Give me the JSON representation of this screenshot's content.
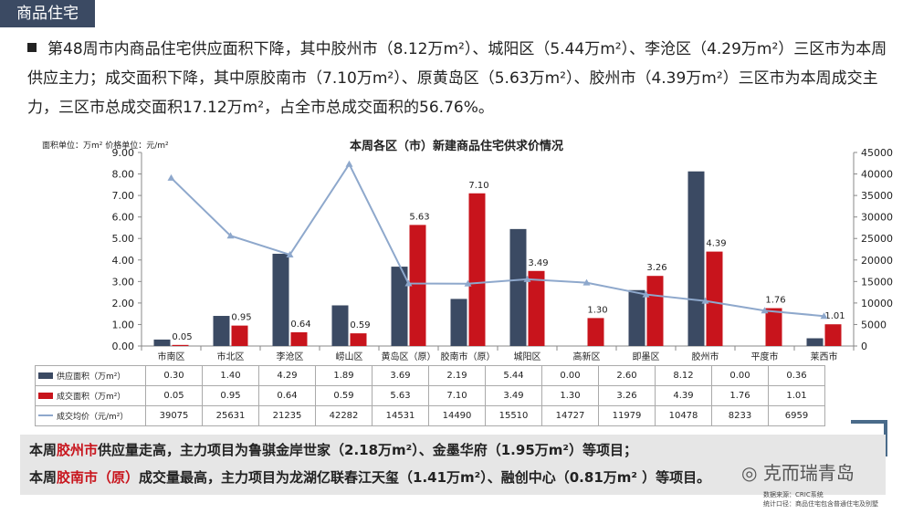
{
  "tag": "商品住宅",
  "intro": "第48周市内商品住宅供应面积下降，其中胶州市（8.12万m²）、城阳区（5.44万m²）、李沧区（4.29万m²）三区市为本周供应主力；成交面积下降，其中原胶南市（7.10万m²）、原黄岛区（5.63万m²）、胶州市（4.39万m²）三区市为本周成交主力，三区市总成交面积17.12万m²，占全市总成交面积的56.76%。",
  "unit_note": "面积单位：万m²  价格单位：元/m²",
  "chart_data": {
    "type": "bar",
    "title": "本周各区（市）新建商品住宅供求价情况",
    "categories": [
      "市南区",
      "市北区",
      "李沧区",
      "崂山区",
      "黄岛区（原）",
      "胶南市（原）",
      "城阳区",
      "高新区",
      "即墨区",
      "胶州市",
      "平度市",
      "莱西市"
    ],
    "series": [
      {
        "name": "供应面积（万m²）",
        "type": "bar",
        "axis": "left",
        "color": "#3b4a63",
        "values": [
          0.3,
          1.4,
          4.29,
          1.89,
          3.69,
          2.19,
          5.44,
          0.0,
          2.6,
          8.12,
          0.0,
          0.36
        ]
      },
      {
        "name": "成交面积（万m²）",
        "type": "bar",
        "axis": "left",
        "color": "#c8141c",
        "values": [
          0.05,
          0.95,
          0.64,
          0.59,
          5.63,
          7.1,
          3.49,
          1.3,
          3.26,
          4.39,
          1.76,
          1.01
        ]
      },
      {
        "name": "成交均价（元/m²）",
        "type": "line",
        "axis": "right",
        "color": "#8ea8cc",
        "values": [
          39075,
          25631,
          21235,
          42282,
          14531,
          14490,
          15510,
          14727,
          11979,
          10478,
          8233,
          6959
        ]
      }
    ],
    "data_labels": {
      "series_index": 1,
      "labels": [
        "0.05",
        "0.95",
        "0.64",
        "0.59",
        "5.63",
        "7.10",
        "3.49",
        "1.30",
        "3.26",
        "4.39",
        "1.76",
        "1.01"
      ]
    },
    "ylim_left": [
      0,
      9
    ],
    "yticks_left": [
      "0.00",
      "1.00",
      "2.00",
      "3.00",
      "4.00",
      "5.00",
      "6.00",
      "7.00",
      "8.00",
      "9.00"
    ],
    "ylim_right": [
      0,
      45000
    ],
    "yticks_right": [
      "0",
      "5000",
      "10000",
      "15000",
      "20000",
      "25000",
      "30000",
      "35000",
      "40000",
      "45000"
    ],
    "table_rows": [
      {
        "label": "供应面积（万m²）",
        "values": [
          "0.30",
          "1.40",
          "4.29",
          "1.89",
          "3.69",
          "2.19",
          "5.44",
          "0.00",
          "2.60",
          "8.12",
          "0.00",
          "0.36"
        ]
      },
      {
        "label": "成交面积（万m²）",
        "values": [
          "0.05",
          "0.95",
          "0.64",
          "0.59",
          "5.63",
          "7.10",
          "3.49",
          "1.30",
          "3.26",
          "4.39",
          "1.76",
          "1.01"
        ]
      },
      {
        "label": "成交均价（元/m²）",
        "values": [
          "39075",
          "25631",
          "21235",
          "42282",
          "14531",
          "14490",
          "15510",
          "14727",
          "11979",
          "10478",
          "8233",
          "6959"
        ]
      }
    ]
  },
  "summary": {
    "line1": {
      "pre": "本周",
      "hl": "胶州市",
      "post": "供应量走高，主力项目为鲁骐金岸世家（2.18万m²）、金墨华府（1.95万m²）等项目；"
    },
    "line2": {
      "pre": "本周",
      "hl": "胶南市（原）",
      "post": "成交量最高，主力项目为龙湖亿联春江天玺（1.41万m²）、融创中心（0.81万m² ）等项目。"
    }
  },
  "watermark": "克而瑞青岛",
  "source": {
    "line1": "数据来源：CRIC系统",
    "line2": "统计口径：商品住宅包含普通住宅及别墅"
  }
}
